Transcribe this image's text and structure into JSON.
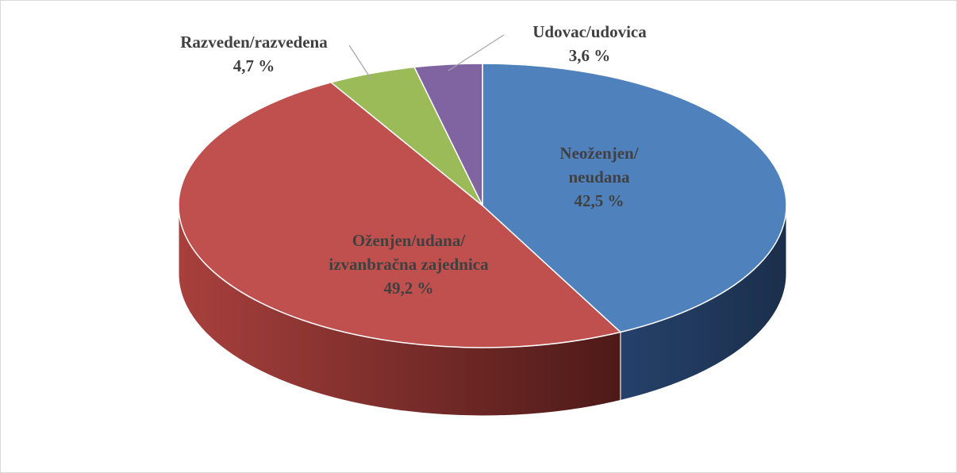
{
  "chart_data": {
    "type": "pie3d",
    "categories": [
      "Neoženjen/\nneudana",
      "Oženjen/udana/\nizvanbračna zajednica",
      "Razveden/razvedena",
      "Udovac/udovica"
    ],
    "values": [
      42.5,
      49.2,
      4.7,
      3.6
    ],
    "value_labels": [
      "42,5 %",
      "49,2 %",
      "4,7 %",
      "3,6 %"
    ],
    "colors": [
      "#4f81bd",
      "#c0504d",
      "#9bbb59",
      "#8064a2"
    ]
  }
}
